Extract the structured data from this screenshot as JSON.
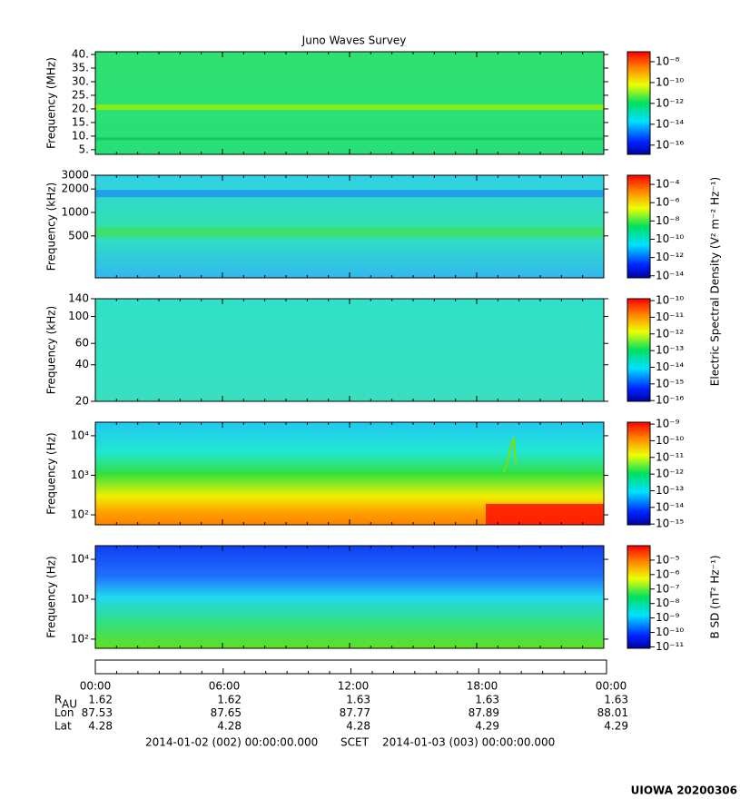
{
  "title": "Juno Waves Survey",
  "chart_data": [
    {
      "type": "spectrogram",
      "ylabel": "Frequency (MHz)",
      "ylog": false,
      "ylim": [
        3.3,
        41
      ],
      "yticks": [
        {
          "value": 40,
          "label": "40."
        },
        {
          "value": 35,
          "label": "35."
        },
        {
          "value": 30,
          "label": "30."
        },
        {
          "value": 25,
          "label": "25."
        },
        {
          "value": 20,
          "label": "20."
        },
        {
          "value": 15,
          "label": "15."
        },
        {
          "value": 10,
          "label": "10."
        },
        {
          "value": 5,
          "label": "5."
        }
      ],
      "clim": [
        1.3e-17,
        9e-08
      ],
      "cticks": [
        {
          "value": 1e-08,
          "label": "10⁻⁸"
        },
        {
          "value": 1e-10,
          "label": "10⁻¹⁰"
        },
        {
          "value": 1e-12,
          "label": "10⁻¹²"
        },
        {
          "value": 1e-14,
          "label": "10⁻¹⁴"
        },
        {
          "value": 1e-16,
          "label": "10⁻¹⁶"
        }
      ]
    },
    {
      "type": "spectrogram",
      "ylabel": "Frequency (kHz)",
      "ylog": true,
      "ylim": [
        145,
        3000
      ],
      "yticks": [
        3000,
        2000,
        1000,
        500
      ],
      "clim": [
        6e-15,
        0.001
      ],
      "cticks": [
        {
          "value": 0.0001,
          "label": "10⁻⁴"
        },
        {
          "value": 1e-06,
          "label": "10⁻⁶"
        },
        {
          "value": 1e-08,
          "label": "10⁻⁸"
        },
        {
          "value": 1e-10,
          "label": "10⁻¹⁰"
        },
        {
          "value": 1e-12,
          "label": "10⁻¹²"
        },
        {
          "value": 1e-14,
          "label": "10⁻¹⁴"
        }
      ]
    },
    {
      "type": "spectrogram",
      "ylabel": "Frequency (kHz)",
      "ylog": true,
      "ylim": [
        20,
        140
      ],
      "yticks": [
        140,
        100,
        60,
        40,
        20
      ],
      "clim": [
        9e-17,
        1.3e-10
      ],
      "cticks": [
        {
          "value": 1e-10,
          "label": "10⁻¹⁰"
        },
        {
          "value": 1e-11,
          "label": "10⁻¹¹"
        },
        {
          "value": 1e-12,
          "label": "10⁻¹²"
        },
        {
          "value": 1e-13,
          "label": "10⁻¹³"
        },
        {
          "value": 1e-14,
          "label": "10⁻¹⁴"
        },
        {
          "value": 1e-15,
          "label": "10⁻¹⁵"
        },
        {
          "value": 1e-16,
          "label": "10⁻¹⁶"
        }
      ]
    },
    {
      "type": "spectrogram",
      "ylabel": "Frequency (Hz)",
      "ylog": true,
      "ylim": [
        56,
        22000
      ],
      "yticks": [
        {
          "value": 10000,
          "label": "10⁴"
        },
        {
          "value": 1000,
          "label": "10³"
        },
        {
          "value": 100,
          "label": "10²"
        }
      ],
      "clim": [
        9e-16,
        1.3e-09
      ],
      "cticks": [
        {
          "value": 1e-09,
          "label": "10⁻⁹"
        },
        {
          "value": 1e-10,
          "label": "10⁻¹⁰"
        },
        {
          "value": 1e-11,
          "label": "10⁻¹¹"
        },
        {
          "value": 1e-12,
          "label": "10⁻¹²"
        },
        {
          "value": 1e-13,
          "label": "10⁻¹³"
        },
        {
          "value": 1e-14,
          "label": "10⁻¹⁴"
        },
        {
          "value": 1e-15,
          "label": "10⁻¹⁵"
        }
      ]
    },
    {
      "type": "spectrogram",
      "ylabel": "Frequency (Hz)",
      "ylog": true,
      "ylim": [
        59,
        22000
      ],
      "yticks": [
        {
          "value": 10000,
          "label": "10⁴"
        },
        {
          "value": 1000,
          "label": "10³"
        },
        {
          "value": 100,
          "label": "10²"
        }
      ],
      "clim": [
        8e-12,
        0.0001
      ],
      "cticks": [
        {
          "value": 1e-05,
          "label": "10⁻⁵"
        },
        {
          "value": 1e-06,
          "label": "10⁻⁶"
        },
        {
          "value": 1e-07,
          "label": "10⁻⁷"
        },
        {
          "value": 1e-08,
          "label": "10⁻⁸"
        },
        {
          "value": 1e-09,
          "label": "10⁻⁹"
        },
        {
          "value": 1e-10,
          "label": "10⁻¹⁰"
        },
        {
          "value": 1e-11,
          "label": "10⁻¹¹"
        }
      ],
      "clabel": "B SD (nT² Hz⁻¹)"
    }
  ],
  "colorbar_label": "Electric Spectral Density (V² m⁻² Hz⁻¹)",
  "time_ticks": [
    "00:00",
    "06:00",
    "12:00",
    "18:00",
    "00:00"
  ],
  "ephemeris": [
    {
      "label": "R",
      "sub": "AU",
      "values": [
        1.62,
        1.62,
        1.63,
        1.63,
        1.63
      ]
    },
    {
      "label": "Lon",
      "values": [
        87.53,
        87.65,
        87.77,
        87.89,
        88.01
      ]
    },
    {
      "label": "Lat",
      "values": [
        4.28,
        4.28,
        4.28,
        4.29,
        4.29
      ]
    }
  ],
  "footer": {
    "start": "2014-01-02 (002) 00:00:00.000",
    "middle": "SCET",
    "end": "2014-01-03 (003) 00:00:00.000"
  },
  "credit": "UIOWA 20200306"
}
